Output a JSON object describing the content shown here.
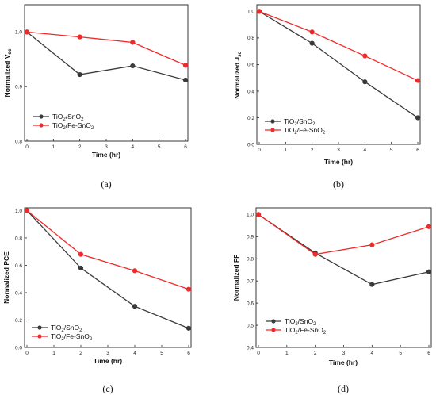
{
  "colors": {
    "series_1": "#3a3a3a",
    "series_2": "#ee2b2b"
  },
  "chart_data": [
    {
      "type": "line",
      "panel": "(a)",
      "xlabel": "Time (hr)",
      "ylabel": {
        "main": "Normalized V",
        "sub": "oc"
      },
      "xlim": [
        0,
        6
      ],
      "ylim": [
        0.8,
        1.05
      ],
      "xticks": [
        "0",
        "1",
        "2",
        "3",
        "4",
        "5",
        "6"
      ],
      "yticks": [
        "0.8",
        "0.9",
        "1.0"
      ],
      "grid": false,
      "legend_position": "lower-left",
      "x": [
        0,
        2,
        4,
        6
      ],
      "series": [
        {
          "name": {
            "a": "TiO",
            "a_sub": "2",
            "b": "/SnO",
            "b_sub": "2"
          },
          "values": [
            1.0,
            0.922,
            0.938,
            0.912
          ]
        },
        {
          "name": {
            "a": "TiO",
            "a_sub": "2",
            "b": "/Fe-SnO",
            "b_sub": "2"
          },
          "values": [
            1.0,
            0.991,
            0.981,
            0.939
          ]
        }
      ]
    },
    {
      "type": "line",
      "panel": "(b)",
      "xlabel": "Time (hr)",
      "ylabel": {
        "main": "Normalized J",
        "sub": "sc"
      },
      "xlim": [
        0,
        6
      ],
      "ylim": [
        0.0,
        1.05
      ],
      "xticks": [
        "0",
        "1",
        "2",
        "3",
        "4",
        "5",
        "6"
      ],
      "yticks": [
        "0.0",
        "0.2",
        "0.4",
        "0.6",
        "0.8",
        "1.0"
      ],
      "grid": false,
      "legend_position": "lower-left",
      "x": [
        0,
        2,
        4,
        6
      ],
      "series": [
        {
          "name": {
            "a": "TiO",
            "a_sub": "2",
            "b": "/SnO",
            "b_sub": "2"
          },
          "values": [
            1.0,
            0.76,
            0.47,
            0.2
          ]
        },
        {
          "name": {
            "a": "TiO",
            "a_sub": "2",
            "b": "/Fe-SnO",
            "b_sub": "2"
          },
          "values": [
            1.0,
            0.845,
            0.665,
            0.48
          ]
        }
      ]
    },
    {
      "type": "line",
      "panel": "(c)",
      "xlabel": "Time (hr)",
      "ylabel": {
        "main": "Normalized PCE",
        "sub": ""
      },
      "xlim": [
        0,
        6
      ],
      "ylim": [
        0.0,
        1.02
      ],
      "xticks": [
        "0",
        "1",
        "2",
        "3",
        "4",
        "5",
        "6"
      ],
      "yticks": [
        "0.0",
        "0.2",
        "0.4",
        "0.6",
        "0.8",
        "1.0"
      ],
      "grid": false,
      "legend_position": "lower-left",
      "x": [
        0,
        2,
        4,
        6
      ],
      "series": [
        {
          "name": {
            "a": "TiO",
            "a_sub": "2",
            "b": "/SnO",
            "b_sub": "2"
          },
          "values": [
            1.0,
            0.58,
            0.3,
            0.14
          ]
        },
        {
          "name": {
            "a": "TiO",
            "a_sub": "2",
            "b": "/Fe-SnO",
            "b_sub": "2"
          },
          "values": [
            1.0,
            0.68,
            0.56,
            0.425
          ]
        }
      ]
    },
    {
      "type": "line",
      "panel": "(d)",
      "xlabel": "Time (hr)",
      "ylabel": {
        "main": "Normalized FF",
        "sub": ""
      },
      "xlim": [
        0,
        6
      ],
      "ylim": [
        0.4,
        1.03
      ],
      "xticks": [
        "0",
        "1",
        "2",
        "3",
        "4",
        "5",
        "6"
      ],
      "yticks": [
        "0.4",
        "0.5",
        "0.6",
        "0.7",
        "0.8",
        "0.9",
        "1.0"
      ],
      "grid": false,
      "legend_position": "lower-left",
      "x": [
        0,
        2,
        4,
        6
      ],
      "series": [
        {
          "name": {
            "a": "TiO",
            "a_sub": "2",
            "b": "/SnO",
            "b_sub": "2"
          },
          "values": [
            1.0,
            0.826,
            0.684,
            0.741
          ]
        },
        {
          "name": {
            "a": "TiO",
            "a_sub": "2",
            "b": "/Fe-SnO",
            "b_sub": "2"
          },
          "values": [
            1.0,
            0.82,
            0.863,
            0.945
          ]
        }
      ]
    }
  ]
}
